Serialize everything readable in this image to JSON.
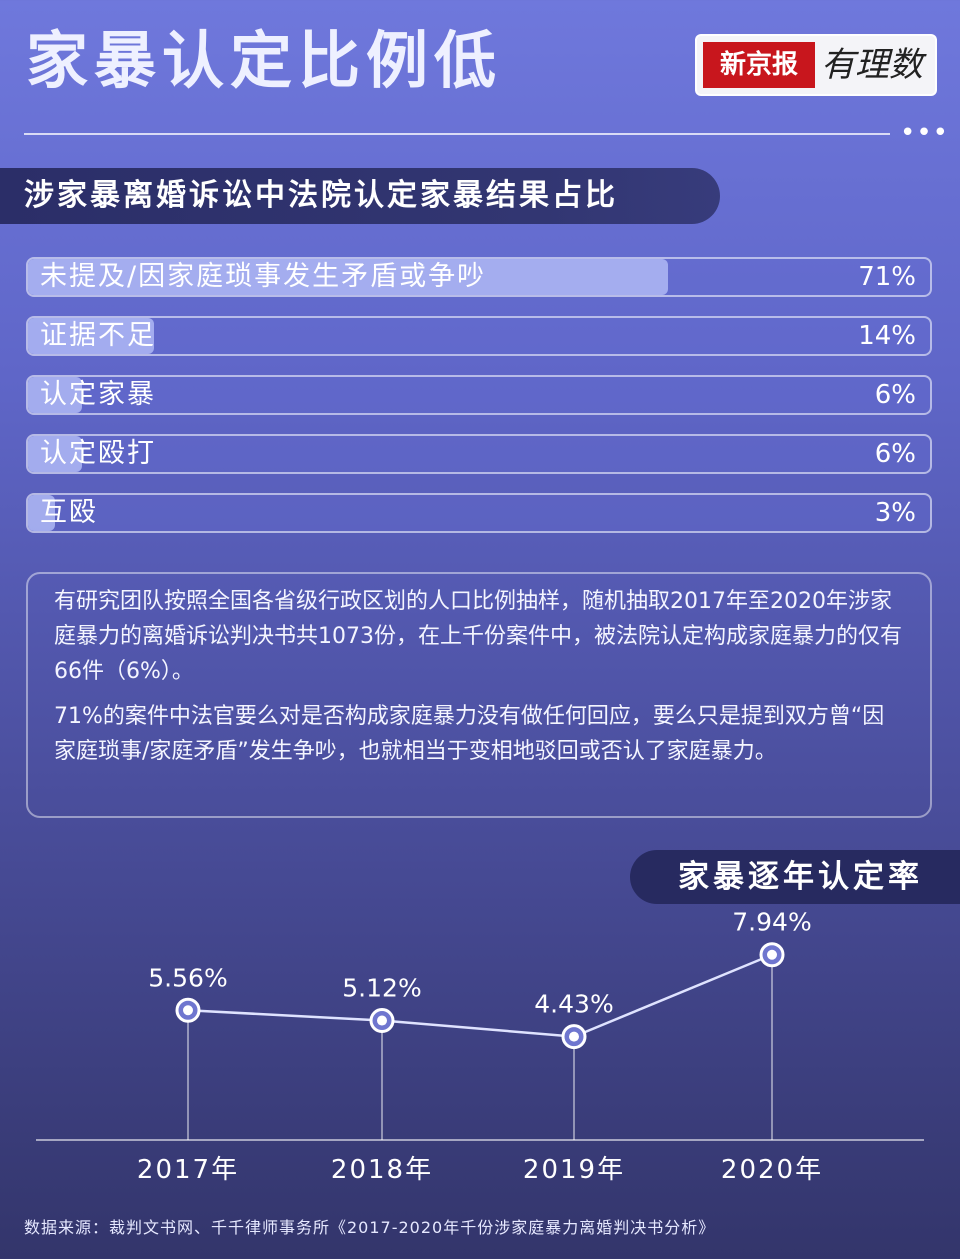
{
  "header": {
    "title": "家暴认定比例低",
    "logo_red": "新京报",
    "logo_script": "有理数",
    "more_dots": "•••"
  },
  "section": {
    "title": "涉家暴离婚诉讼中法院认定家暴结果占比"
  },
  "bars": [
    {
      "label": "未提及/因家庭琐事发生矛盾或争吵",
      "value": "71%",
      "fraction": 0.71
    },
    {
      "label": "证据不足",
      "value": "14%",
      "fraction": 0.14
    },
    {
      "label": "认定家暴",
      "value": "6%",
      "fraction": 0.06
    },
    {
      "label": "认定殴打",
      "value": "6%",
      "fraction": 0.06
    },
    {
      "label": "互殴",
      "value": "3%",
      "fraction": 0.03
    }
  ],
  "note": {
    "p1": "有研究团队按照全国各省级行政区划的人口比例抽样，随机抽取2017年至2020年涉家庭暴力的离婚诉讼判决书共1073份，在上千份案件中，被法院认定构成家庭暴力的仅有66件（6%）。",
    "p2": "71%的案件中法官要么对是否构成家庭暴力没有做任何回应，要么只是提到双方曾“因家庭琐事/家庭矛盾”发生争吵，也就相当于变相地驳回或否认了家庭暴力。"
  },
  "trend": {
    "title": "家暴逐年认定率"
  },
  "chart_data": [
    {
      "type": "bar",
      "title": "涉家暴离婚诉讼中法院认定家暴结果占比",
      "categories": [
        "未提及/因家庭琐事发生矛盾或争吵",
        "证据不足",
        "认定家暴",
        "认定殴打",
        "互殴"
      ],
      "values": [
        71,
        14,
        6,
        6,
        3
      ]
    },
    {
      "type": "line",
      "title": "家暴逐年认定率",
      "x": [
        "2017年",
        "2018年",
        "2019年",
        "2020年"
      ],
      "values": [
        5.56,
        5.12,
        4.43,
        7.94
      ],
      "data_labels": [
        "5.56%",
        "5.12%",
        "4.43%",
        "7.94%"
      ],
      "ylim": [
        0,
        9
      ],
      "grid": false
    }
  ],
  "source": "数据来源：裁判文书网、千千律师事务所《2017-2020年千份涉家庭暴力离婚判决书分析》",
  "colors": {
    "bg_top": "#6f78dc",
    "bg_bottom": "#33356b",
    "banner": "#2b2e68",
    "bar_fill": "#afb9f5",
    "logo_red": "#c8161d"
  }
}
